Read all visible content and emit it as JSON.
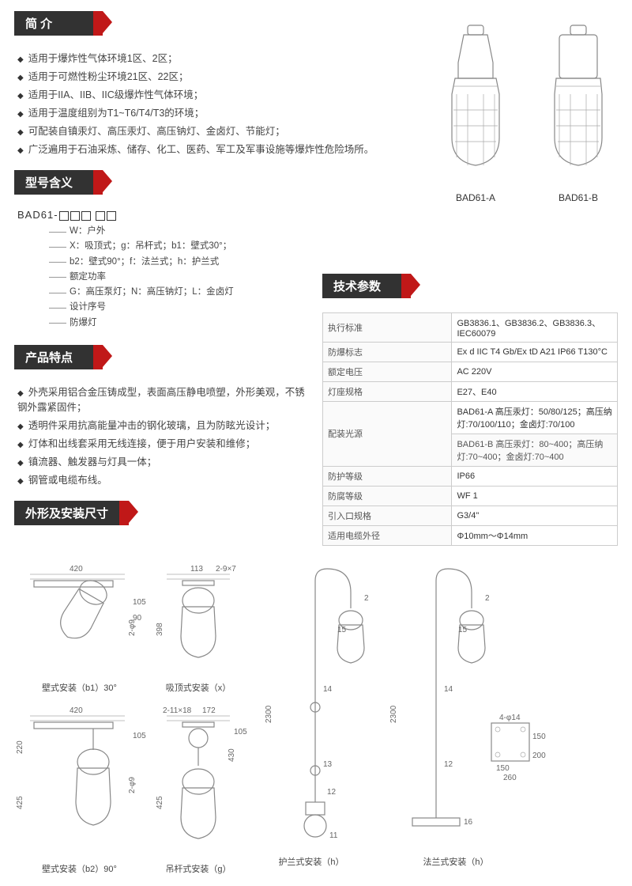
{
  "colors": {
    "header_bg": "#323232",
    "header_accent": "#c01818",
    "text": "#333333",
    "text_light": "#444444",
    "border": "#cccccc",
    "bg": "#ffffff"
  },
  "fonts": {
    "body_size": 12,
    "header_size": 15
  },
  "sections": {
    "intro_title": "简 介",
    "model_title": "型号含义",
    "features_title": "产品特点",
    "specs_title": "技术参数",
    "dims_title": "外形及安装尺寸"
  },
  "intro_bullets": [
    "适用于爆炸性气体环境1区、2区；",
    "适用于可燃性粉尘环境21区、22区；",
    "适用于IIA、IIB、IIC级爆炸性气体环境；",
    "适用于温度组别为T1~T6/T4/T3的环境；",
    "可配装自镇汞灯、高压汞灯、高压钠灯、金卤灯、节能灯；",
    "广泛遍用于石油采炼、储存、化工、医药、军工及军事设施等爆炸性危险场所。"
  ],
  "products": [
    {
      "label": "BAD61-A"
    },
    {
      "label": "BAD61-B"
    }
  ],
  "model_code_prefix": "BAD61-",
  "model_tree": [
    "W：户外",
    "X：吸顶式；g：吊杆式；b1：壁式30°；",
    "b2：壁式90°；f：法兰式；h：护兰式",
    "额定功率",
    "G：高压泵灯；N：高压钠灯；L：金卤灯",
    "设计序号",
    "防爆灯"
  ],
  "features_bullets": [
    "外壳采用铝合金压铸成型，表面高压静电喷塑，外形美观，不锈钢外露紧固件；",
    "透明件采用抗高能量冲击的钢化玻璃，且为防眩光设计；",
    "灯体和出线套采用无线连接，便于用户安装和维修；",
    "镇流器、触发器与灯具一体；",
    "钢管或电缆布线。"
  ],
  "specs": [
    {
      "k": "执行标准",
      "v": "GB3836.1、GB3836.2、GB3836.3、IEC60079"
    },
    {
      "k": "防爆标志",
      "v": "Ex d IIC T4 Gb/Ex tD A21 IP66 T130°C"
    },
    {
      "k": "额定电压",
      "v": "AC 220V"
    },
    {
      "k": "灯座规格",
      "v": "E27、E40"
    },
    {
      "k": "配装光源",
      "v": "BAD61-A 高压汞灯：50/80/125；高压纳灯:70/100/110；金卤灯:70/100",
      "v2": "BAD61-B 高压汞灯：80~400；高压纳灯:70~400；金卤灯:70~400"
    },
    {
      "k": "防护等级",
      "v": "IP66"
    },
    {
      "k": "防腐等级",
      "v": "WF 1"
    },
    {
      "k": "引入口规格",
      "v": "G3/4\""
    },
    {
      "k": "适用电缆外径",
      "v": "Φ10mm～Φ14mm"
    }
  ],
  "diagrams": [
    {
      "label": "壁式安装（b1）30°",
      "dims": {
        "w": "420",
        "h1": "105",
        "h2": "90",
        "phi": "2-φ9"
      }
    },
    {
      "label": "吸顶式安装（x）",
      "dims": {
        "w": "113",
        "slot": "2-9×7",
        "h": "398"
      }
    },
    {
      "label": "壁式安装（b2）90°",
      "dims": {
        "w": "420",
        "h1": "105",
        "h2": "220",
        "h3": "425",
        "phi": "2-φ9"
      }
    },
    {
      "label": "吊杆式安装（g）",
      "dims": {
        "w": "172",
        "slot": "2-11×18",
        "h1": "105",
        "h2": "430",
        "h3": "425"
      }
    },
    {
      "label": "护兰式安装（h）",
      "dims": {
        "h": "2300",
        "c": [
          "2",
          "15",
          "14",
          "13",
          "12",
          "11"
        ]
      }
    },
    {
      "label": "法兰式安装（h）",
      "dims": {
        "h": "2300",
        "c": [
          "2",
          "15",
          "14",
          "12",
          "16"
        ],
        "base": {
          "phi": "4-φ14",
          "a": "150",
          "b": "200",
          "c": "150",
          "d": "260"
        }
      }
    }
  ]
}
